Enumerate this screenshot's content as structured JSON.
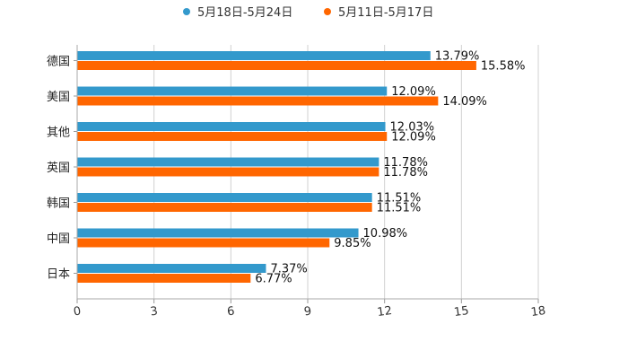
{
  "chart_data": {
    "type": "bar",
    "orientation": "horizontal",
    "title": "",
    "xlabel": "",
    "ylabel": "",
    "xlim": [
      0,
      18
    ],
    "x_ticks": [
      "0",
      "3",
      "6",
      "9",
      "12",
      "15",
      "18"
    ],
    "categories": [
      "德国",
      "美国",
      "其他",
      "英国",
      "韩国",
      "中国",
      "日本"
    ],
    "series": [
      {
        "name": "5月18日-5月24日",
        "color": "#3399cc",
        "values": [
          13.79,
          12.09,
          12.03,
          11.78,
          11.51,
          10.98,
          7.37
        ],
        "labels": [
          "13.79%",
          "12.09%",
          "12.03%",
          "11.78%",
          "11.51%",
          "10.98%",
          "7.37%"
        ]
      },
      {
        "name": "5月11日-5月17日",
        "color": "#ff6600",
        "values": [
          15.58,
          14.09,
          12.09,
          11.78,
          11.51,
          9.85,
          6.77
        ],
        "labels": [
          "15.58%",
          "14.09%",
          "12.09%",
          "11.78%",
          "11.51%",
          "9.85%",
          "6.77%"
        ]
      }
    ],
    "legend_position": "top-center",
    "grid": true
  }
}
